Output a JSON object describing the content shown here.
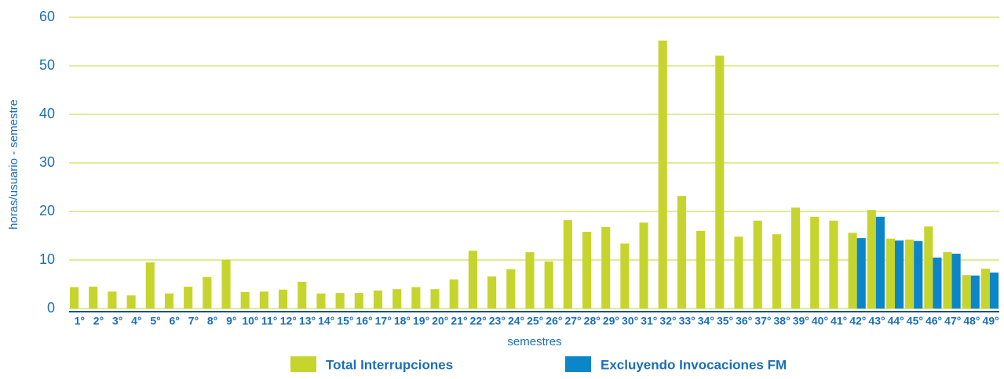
{
  "chart_data": {
    "type": "bar",
    "y_label": "horas/usuario - semestre",
    "x_label": "semestres",
    "categories": [
      "1°",
      "2°",
      "3°",
      "4°",
      "5°",
      "6°",
      "7°",
      "8°",
      "9°",
      "10°",
      "11°",
      "12°",
      "13°",
      "14°",
      "15°",
      "16°",
      "17°",
      "18°",
      "19°",
      "20°",
      "21°",
      "22°",
      "23°",
      "24°",
      "25°",
      "26°",
      "27°",
      "28°",
      "29°",
      "30°",
      "31°",
      "32°",
      "33°",
      "34°",
      "35°",
      "36°",
      "37°",
      "38°",
      "39°",
      "40°",
      "41°",
      "42°",
      "43°",
      "44°",
      "45°",
      "46°",
      "47°",
      "48°",
      "49°"
    ],
    "series": [
      {
        "name": "Total Interrupciones",
        "color": "#c6d52d",
        "values": [
          4.4,
          4.5,
          3.5,
          2.7,
          9.5,
          3.1,
          4.5,
          6.5,
          10,
          3.4,
          3.5,
          3.9,
          5.5,
          3.1,
          3.2,
          3.2,
          3.7,
          4.0,
          4.4,
          4.0,
          6.0,
          11.9,
          6.6,
          8.1,
          11.6,
          9.7,
          18.2,
          15.8,
          16.8,
          13.4,
          17.7,
          55.2,
          23.2,
          16,
          52.1,
          14.8,
          18.1,
          15.3,
          20.8,
          18.9,
          18.1,
          15.6,
          20.3,
          14.4,
          14.2,
          16.9,
          11.6,
          6.9,
          8.2
        ]
      },
      {
        "name": "Excluyendo Invocaciones FM",
        "color": "#0b86c8",
        "values": [
          null,
          null,
          null,
          null,
          null,
          null,
          null,
          null,
          null,
          null,
          null,
          null,
          null,
          null,
          null,
          null,
          null,
          null,
          null,
          null,
          null,
          null,
          null,
          null,
          null,
          null,
          null,
          null,
          null,
          null,
          null,
          null,
          null,
          null,
          null,
          null,
          null,
          null,
          null,
          null,
          null,
          14.5,
          18.9,
          14.0,
          13.9,
          10.5,
          11.3,
          6.8,
          7.4
        ]
      }
    ],
    "ylim": [
      0,
      60
    ],
    "yticks": [
      0,
      10,
      20,
      30,
      40,
      50,
      60
    ],
    "grid": true,
    "legend": "bottom"
  }
}
